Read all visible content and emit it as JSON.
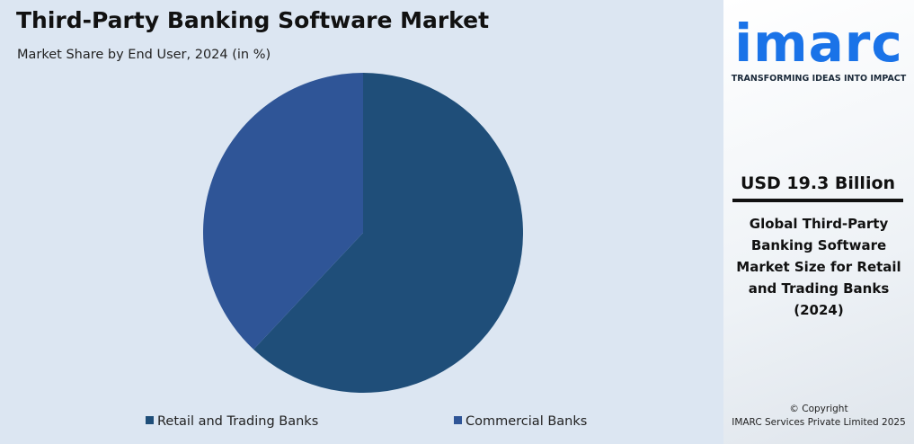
{
  "chart_data": {
    "type": "pie",
    "title": "Third-Party Banking Software Market",
    "subtitle": "Market Share by End User, 2024 (in %)",
    "categories": [
      "Retail and Trading Banks",
      "Commercial Banks"
    ],
    "values": [
      62,
      38
    ],
    "colors": [
      "#1f4e79",
      "#2f5597"
    ],
    "legend": "bottom"
  },
  "sidebar": {
    "brand": "imarc",
    "tagline": "TRANSFORMING IDEAS INTO IMPACT",
    "stat": "USD 19.3 Billion",
    "description": "Global Third-Party Banking Software Market Size for Retail and Trading Banks (2024)",
    "copyright": "© Copyright",
    "company": "IMARC Services Private Limited 2025"
  }
}
